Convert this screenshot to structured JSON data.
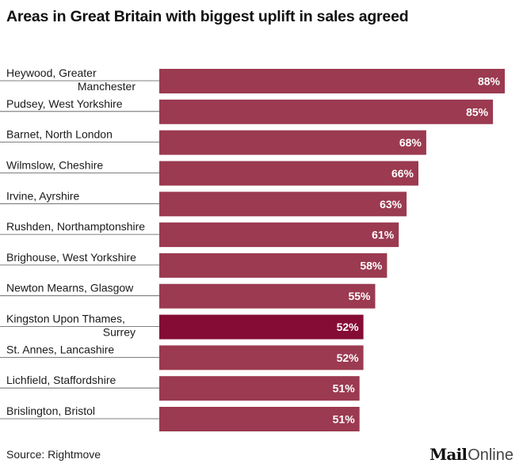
{
  "colors": {
    "bar": "#9b3a50",
    "highlight": "#850c34",
    "value_text": "#ffffff",
    "label_text": "#1a1a1a"
  },
  "chart_data": {
    "type": "bar",
    "orientation": "horizontal",
    "title": "Areas in Great Britain with biggest uplift in sales agreed",
    "xlabel": "",
    "ylabel": "",
    "xlim": [
      0,
      88
    ],
    "grid": false,
    "legend": "none",
    "value_suffix": "%",
    "categories": [
      "Heywood, Greater Manchester",
      "Pudsey, West Yorkshire",
      "Barnet, North London",
      "Wilmslow, Cheshire",
      "Irvine, Ayrshire",
      "Rushden, Northamptonshire",
      "Brighouse, West Yorkshire",
      "Newton Mearns, Glasgow",
      "Kingston Upon Thames, Surrey",
      "St. Annes, Lancashire",
      "Lichfield, Staffordshire",
      "Brislington, Bristol"
    ],
    "label_lines": [
      [
        "Heywood, Greater",
        "Manchester"
      ],
      [
        "Pudsey, West Yorkshire"
      ],
      [
        "Barnet, North London"
      ],
      [
        "Wilmslow, Cheshire"
      ],
      [
        "Irvine, Ayrshire"
      ],
      [
        "Rushden, Northamptonshire"
      ],
      [
        "Brighouse, West Yorkshire"
      ],
      [
        "Newton Mearns, Glasgow"
      ],
      [
        "Kingston Upon Thames,",
        "Surrey"
      ],
      [
        "St. Annes, Lancashire"
      ],
      [
        "Lichfield, Staffordshire"
      ],
      [
        "Brislington, Bristol"
      ]
    ],
    "values": [
      88,
      85,
      68,
      66,
      63,
      61,
      58,
      55,
      52,
      52,
      51,
      51
    ],
    "value_labels": [
      "88%",
      "85%",
      "68%",
      "66%",
      "63%",
      "61%",
      "58%",
      "55%",
      "52%",
      "52%",
      "51%",
      "51%"
    ],
    "highlighted": [
      "Kingston Upon Thames, Surrey"
    ]
  },
  "footer": {
    "source": "Source: Rightmove",
    "logo_mail": "Mail",
    "logo_online": "Online"
  }
}
